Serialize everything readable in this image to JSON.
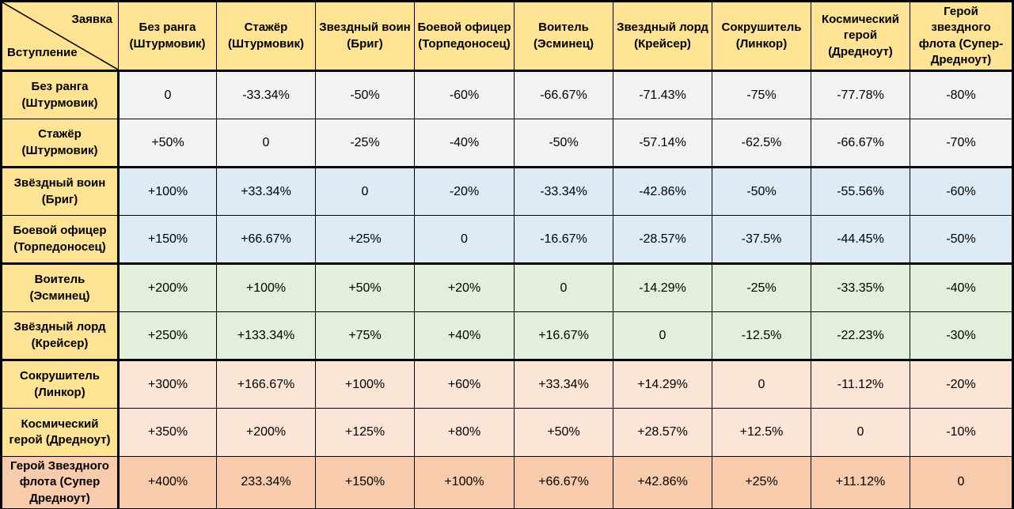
{
  "chart_data": {
    "type": "table",
    "corner": {
      "top_label": "Заявка",
      "bottom_label": "Вступление"
    },
    "column_headers": [
      "Без ранга (Штурмовик)",
      "Стажёр (Штурмовик)",
      "Звездный воин (Бриг)",
      "Боевой офицер (Торпедоносец)",
      "Воитель (Эсминец)",
      "Звездный лорд (Крейсер)",
      "Сокрушитель (Линкор)",
      "Космический герой (Дредноут)",
      "Герой звездного флота (Супер-Дредноут)"
    ],
    "rows": [
      {
        "header": "Без ранга (Штурмовик)",
        "band": "gray",
        "header_band": "header",
        "thick_bottom": false,
        "values": [
          "0",
          "-33.34%",
          "-50%",
          "-60%",
          "-66.67%",
          "-71.43%",
          "-75%",
          "-77.78%",
          "-80%"
        ]
      },
      {
        "header": "Стажёр (Штурмовик)",
        "band": "gray",
        "header_band": "header",
        "thick_bottom": true,
        "values": [
          "+50%",
          "0",
          "-25%",
          "-40%",
          "-50%",
          "-57.14%",
          "-62.5%",
          "-66.67%",
          "-70%"
        ]
      },
      {
        "header": "Звёздный воин (Бриг)",
        "band": "blue",
        "header_band": "header",
        "thick_bottom": false,
        "values": [
          "+100%",
          "+33.34%",
          "0",
          "-20%",
          "-33.34%",
          "-42.86%",
          "-50%",
          "-55.56%",
          "-60%"
        ]
      },
      {
        "header": "Боевой офицер (Торпедоносец)",
        "band": "blue",
        "header_band": "header",
        "thick_bottom": true,
        "values": [
          "+150%",
          "+66.67%",
          "+25%",
          "0",
          "-16.67%",
          "-28.57%",
          "-37.5%",
          "-44.45%",
          "-50%"
        ]
      },
      {
        "header": "Воитель (Эсминец)",
        "band": "green",
        "header_band": "header",
        "thick_bottom": false,
        "values": [
          "+200%",
          "+100%",
          "+50%",
          "+20%",
          "0",
          "-14.29%",
          "-25%",
          "-33.35%",
          "-40%"
        ]
      },
      {
        "header": "Звёздный лорд (Крейсер)",
        "band": "green",
        "header_band": "header",
        "thick_bottom": true,
        "values": [
          "+250%",
          "+133.34%",
          "+75%",
          "+40%",
          "+16.67%",
          "0",
          "-12.5%",
          "-22.23%",
          "-30%"
        ]
      },
      {
        "header": "Сокрушитель (Линкор)",
        "band": "peach",
        "header_band": "header",
        "thick_bottom": false,
        "values": [
          "+300%",
          "+166.67%",
          "+100%",
          "+60%",
          "+33.34%",
          "+14.29%",
          "0",
          "-11.12%",
          "-20%"
        ]
      },
      {
        "header": "Космический герой (Дредноут)",
        "band": "peach",
        "header_band": "header",
        "thick_bottom": false,
        "values": [
          "+350%",
          "+200%",
          "+125%",
          "+80%",
          "+50%",
          "+28.57%",
          "+12.5%",
          "0",
          "-10%"
        ]
      },
      {
        "header": "Герой Звездного флота (Супер Дредноут)",
        "band": "orange",
        "header_band": "orange",
        "thick_bottom": false,
        "values": [
          "+400%",
          "233.34%",
          "+150%",
          "+100%",
          "+66.67%",
          "+42.86%",
          "+25%",
          "+11.12%",
          "0"
        ]
      }
    ]
  },
  "colors": {
    "header": "#FFE395",
    "gray": "#F2F2F2",
    "blue": "#DDEBF7",
    "green": "#E2EFDA",
    "peach": "#FCE4D6",
    "orange": "#F8CBAD",
    "border": "#000000"
  }
}
